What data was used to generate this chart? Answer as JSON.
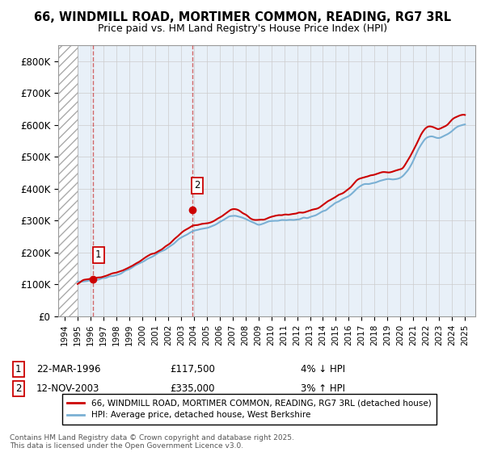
{
  "title": "66, WINDMILL ROAD, MORTIMER COMMON, READING, RG7 3RL",
  "subtitle": "Price paid vs. HM Land Registry's House Price Index (HPI)",
  "legend_line1": "66, WINDMILL ROAD, MORTIMER COMMON, READING, RG7 3RL (detached house)",
  "legend_line2": "HPI: Average price, detached house, West Berkshire",
  "sale1_date": "22-MAR-1996",
  "sale1_price": "£117,500",
  "sale1_hpi": "4% ↓ HPI",
  "sale1_year": 1996.22,
  "sale1_value": 117500,
  "sale2_date": "12-NOV-2003",
  "sale2_price": "£335,000",
  "sale2_hpi": "3% ↑ HPI",
  "sale2_year": 2003.87,
  "sale2_value": 335000,
  "price_color": "#cc0000",
  "hpi_color": "#7ab0d4",
  "background_plot": "#e8f0f8",
  "grid_color": "#cccccc",
  "dashed_line_color": "#cc4444",
  "footer": "Contains HM Land Registry data © Crown copyright and database right 2025.\nThis data is licensed under the Open Government Licence v3.0.",
  "ylim": [
    0,
    850000
  ],
  "yticks": [
    0,
    100000,
    200000,
    300000,
    400000,
    500000,
    600000,
    700000,
    800000
  ],
  "ytick_labels": [
    "£0",
    "£100K",
    "£200K",
    "£300K",
    "£400K",
    "£500K",
    "£600K",
    "£700K",
    "£800K"
  ],
  "xmin": 1993.5,
  "xmax": 2025.8,
  "hatch_xmax": 1995.0,
  "hpi_years": [
    1995,
    1996,
    1997,
    1998,
    1999,
    2000,
    2001,
    2002,
    2003,
    2004,
    2005,
    2006,
    2007,
    2008,
    2009,
    2010,
    2011,
    2012,
    2013,
    2014,
    2015,
    2016,
    2017,
    2018,
    2019,
    2020,
    2021,
    2022,
    2023,
    2024,
    2025
  ],
  "hpi_values": [
    108000,
    113000,
    120000,
    130000,
    148000,
    170000,
    192000,
    218000,
    245000,
    268000,
    278000,
    295000,
    315000,
    305000,
    290000,
    298000,
    302000,
    305000,
    312000,
    330000,
    355000,
    380000,
    410000,
    420000,
    430000,
    435000,
    490000,
    560000,
    560000,
    580000,
    600000
  ],
  "price_years": [
    1995,
    1996,
    1997,
    1998,
    1999,
    2000,
    2001,
    2002,
    2003,
    2004,
    2005,
    2006,
    2007,
    2008,
    2009,
    2010,
    2011,
    2012,
    2013,
    2014,
    2015,
    2016,
    2017,
    2018,
    2019,
    2020,
    2021,
    2022,
    2023,
    2024,
    2025
  ],
  "price_values": [
    105000,
    117500,
    125000,
    138000,
    155000,
    178000,
    200000,
    225000,
    260000,
    285000,
    292000,
    310000,
    335000,
    318000,
    302000,
    312000,
    318000,
    322000,
    330000,
    348000,
    375000,
    400000,
    435000,
    445000,
    455000,
    460000,
    520000,
    590000,
    590000,
    615000,
    630000
  ]
}
